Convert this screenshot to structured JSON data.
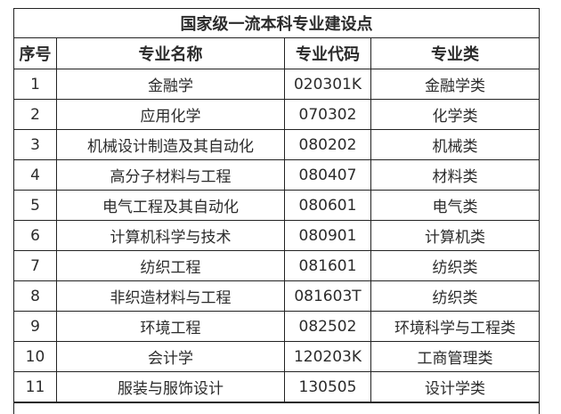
{
  "title": "国家级一流本科专业建设点",
  "headers": [
    "序号",
    "专业名称",
    "专业代码",
    "专业类"
  ],
  "rows": [
    [
      "1",
      "金融学",
      "020301K",
      "金融学类"
    ],
    [
      "2",
      "应用化学",
      "070302",
      "化学类"
    ],
    [
      "3",
      "机械设计制造及其自动化",
      "080202",
      "机械类"
    ],
    [
      "4",
      "高分子材料与工程",
      "080407",
      "材料类"
    ],
    [
      "5",
      "电气工程及其自动化",
      "080601",
      "电气类"
    ],
    [
      "6",
      "计算机科学与技术",
      "080901",
      "计算机类"
    ],
    [
      "7",
      "纺织工程",
      "081601",
      "纺织类"
    ],
    [
      "8",
      "非织造材料与工程",
      "081603T",
      "纺织类"
    ],
    [
      "9",
      "环境工程",
      "082502",
      "环境科学与工程类"
    ],
    [
      "10",
      "会计学",
      "120203K",
      "工商管理类"
    ],
    [
      "11",
      "服装与服饰设计",
      "130505",
      "设计学类"
    ]
  ]
}
